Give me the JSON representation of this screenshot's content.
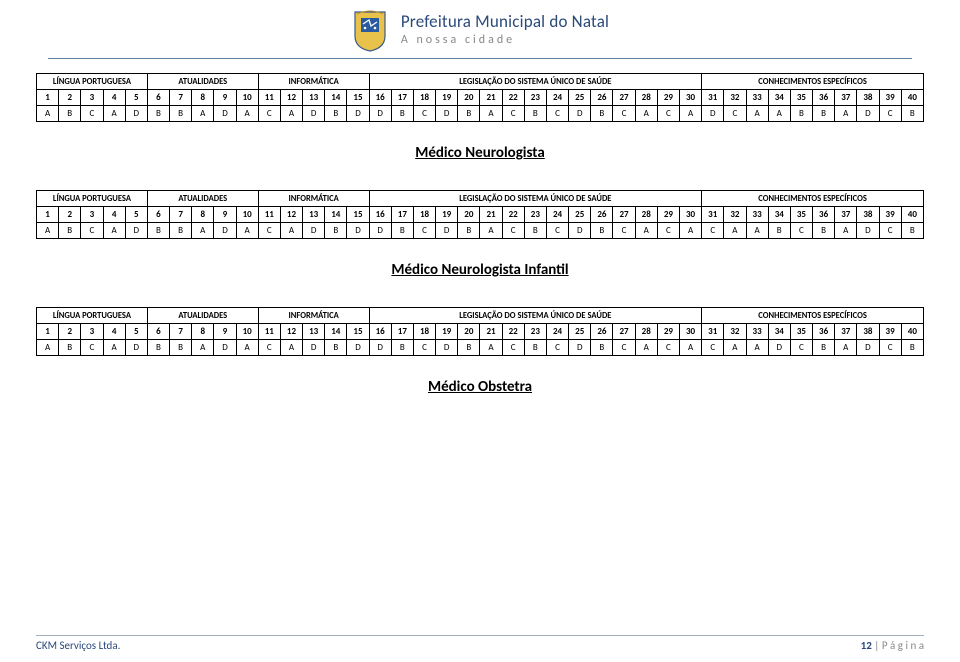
{
  "header": {
    "city_name": "Prefeitura Municipal do Natal",
    "tagline": "A nossa cidade"
  },
  "subjects": {
    "lp": {
      "label": "LÍNGUA PORTUGUESA",
      "span": 5
    },
    "atu": {
      "label": "ATUALIDADES",
      "span": 5
    },
    "inf": {
      "label": "INFORMÁTICA",
      "span": 5
    },
    "leg": {
      "label": "LEGISLAÇÃO DO SISTEMA ÚNICO DE SAÚDE",
      "span": 15
    },
    "esp": {
      "label": "CONHECIMENTOS ESPECÍFICOS",
      "span": 10
    }
  },
  "numbers": [
    "1",
    "2",
    "3",
    "4",
    "5",
    "6",
    "7",
    "8",
    "9",
    "10",
    "11",
    "12",
    "13",
    "14",
    "15",
    "16",
    "17",
    "18",
    "19",
    "20",
    "21",
    "22",
    "23",
    "24",
    "25",
    "26",
    "27",
    "28",
    "29",
    "30",
    "31",
    "32",
    "33",
    "34",
    "35",
    "36",
    "37",
    "38",
    "39",
    "40"
  ],
  "tables": [
    {
      "title_after": "Médico Neurologista",
      "answers": [
        "A",
        "B",
        "C",
        "A",
        "D",
        "B",
        "B",
        "A",
        "D",
        "A",
        "C",
        "A",
        "D",
        "B",
        "D",
        "D",
        "B",
        "C",
        "D",
        "B",
        "A",
        "C",
        "B",
        "C",
        "D",
        "B",
        "C",
        "A",
        "C",
        "A",
        "D",
        "C",
        "A",
        "A",
        "B",
        "B",
        "A",
        "D",
        "C",
        "B"
      ]
    },
    {
      "title_after": "Médico Neurologista Infantil",
      "answers": [
        "A",
        "B",
        "C",
        "A",
        "D",
        "B",
        "B",
        "A",
        "D",
        "A",
        "C",
        "A",
        "D",
        "B",
        "D",
        "D",
        "B",
        "C",
        "D",
        "B",
        "A",
        "C",
        "B",
        "C",
        "D",
        "B",
        "C",
        "A",
        "C",
        "A",
        "C",
        "A",
        "A",
        "B",
        "C",
        "B",
        "A",
        "D",
        "C",
        "B"
      ]
    },
    {
      "title_after": "Médico Obstetra",
      "answers": [
        "A",
        "B",
        "C",
        "A",
        "D",
        "B",
        "B",
        "A",
        "D",
        "A",
        "C",
        "A",
        "D",
        "B",
        "D",
        "D",
        "B",
        "C",
        "D",
        "B",
        "A",
        "C",
        "B",
        "C",
        "D",
        "B",
        "C",
        "A",
        "C",
        "A",
        "C",
        "A",
        "A",
        "D",
        "C",
        "B",
        "A",
        "D",
        "C",
        "B"
      ]
    }
  ],
  "footer": {
    "company": "CKM Serviços Ltda.",
    "page_num": "12",
    "page_label": "P á g i n a"
  },
  "colors": {
    "border": "#000000",
    "brand_text": "#2a4a7a",
    "tagline_text": "#888888",
    "hr": "#6080a0",
    "footer_border": "#a0b0c0",
    "bg": "#ffffff"
  }
}
